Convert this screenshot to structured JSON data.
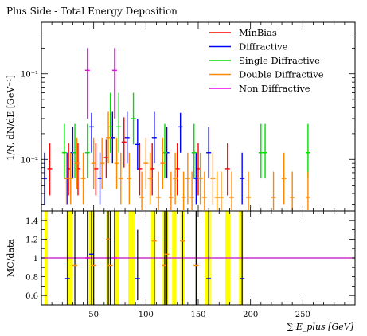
{
  "chart_data": {
    "type": "scatter",
    "title": "Plus Side - Total Energy Deposition",
    "ylabel": "1/N, dN/dE [GeV⁻¹]",
    "ratio_ylabel": "MC/data",
    "xlabel": "∑ E_plus [GeV]",
    "xlim": [
      0,
      300
    ],
    "ylim_log": [
      0.0025,
      0.4
    ],
    "ratio_ylim": [
      0.5,
      1.5
    ],
    "x_ticks": [
      50,
      100,
      150,
      200,
      250
    ],
    "y_tick_labels": [
      "10⁻²",
      "10⁻¹"
    ],
    "ratio_ticks": [
      "0.6",
      "0.8",
      "1",
      "1.2",
      "1.4"
    ],
    "legend_position": "top-right",
    "grid": false,
    "series": [
      {
        "name": "MinBias",
        "color": "#ff0000",
        "points": [
          {
            "x": 8,
            "y": 0.0078,
            "lo": 0.0038,
            "hi": 0.0155
          },
          {
            "x": 26,
            "y": 0.0078,
            "lo": 0.0038,
            "hi": 0.0155
          },
          {
            "x": 35,
            "y": 0.0078,
            "lo": 0.0038,
            "hi": 0.0155
          },
          {
            "x": 52,
            "y": 0.0078,
            "lo": 0.0038,
            "hi": 0.0155
          },
          {
            "x": 62,
            "y": 0.0105,
            "lo": 0.006,
            "hi": 0.017
          },
          {
            "x": 79,
            "y": 0.016,
            "lo": 0.008,
            "hi": 0.031
          },
          {
            "x": 94,
            "y": 0.0078,
            "lo": 0.0038,
            "hi": 0.0155
          },
          {
            "x": 106,
            "y": 0.0078,
            "lo": 0.0038,
            "hi": 0.0155
          },
          {
            "x": 130,
            "y": 0.0078,
            "lo": 0.0038,
            "hi": 0.0155
          },
          {
            "x": 150,
            "y": 0.0078,
            "lo": 0.0038,
            "hi": 0.0155
          },
          {
            "x": 178,
            "y": 0.0078,
            "lo": 0.0038,
            "hi": 0.0155
          }
        ]
      },
      {
        "name": "Diffractive",
        "color": "#0000ff",
        "points": [
          {
            "x": 3,
            "y": 0.006,
            "lo": 0.003,
            "hi": 0.012
          },
          {
            "x": 25,
            "y": 0.006,
            "lo": 0.003,
            "hi": 0.012
          },
          {
            "x": 30,
            "y": 0.012,
            "lo": 0.006,
            "hi": 0.024
          },
          {
            "x": 48,
            "y": 0.024,
            "lo": 0.012,
            "hi": 0.035
          },
          {
            "x": 56,
            "y": 0.006,
            "lo": 0.003,
            "hi": 0.012
          },
          {
            "x": 68,
            "y": 0.018,
            "lo": 0.009,
            "hi": 0.036
          },
          {
            "x": 82,
            "y": 0.018,
            "lo": 0.009,
            "hi": 0.036
          },
          {
            "x": 92,
            "y": 0.015,
            "lo": 0.0075,
            "hi": 0.03
          },
          {
            "x": 108,
            "y": 0.018,
            "lo": 0.009,
            "hi": 0.036
          },
          {
            "x": 120,
            "y": 0.012,
            "lo": 0.006,
            "hi": 0.024
          },
          {
            "x": 133,
            "y": 0.024,
            "lo": 0.012,
            "hi": 0.035
          },
          {
            "x": 148,
            "y": 0.006,
            "lo": 0.003,
            "hi": 0.012
          },
          {
            "x": 160,
            "y": 0.012,
            "lo": 0.006,
            "hi": 0.024
          },
          {
            "x": 192,
            "y": 0.006,
            "lo": 0.003,
            "hi": 0.012
          }
        ]
      },
      {
        "name": "Single Diffractive",
        "color": "#00dd00",
        "points": [
          {
            "x": 22,
            "y": 0.012,
            "lo": 0.006,
            "hi": 0.026
          },
          {
            "x": 32,
            "y": 0.012,
            "lo": 0.006,
            "hi": 0.026
          },
          {
            "x": 44,
            "y": 0.012,
            "lo": 0.006,
            "hi": 0.026
          },
          {
            "x": 66,
            "y": 0.024,
            "lo": 0.012,
            "hi": 0.06
          },
          {
            "x": 74,
            "y": 0.024,
            "lo": 0.012,
            "hi": 0.06
          },
          {
            "x": 88,
            "y": 0.03,
            "lo": 0.015,
            "hi": 0.06
          },
          {
            "x": 118,
            "y": 0.012,
            "lo": 0.006,
            "hi": 0.026
          },
          {
            "x": 146,
            "y": 0.012,
            "lo": 0.006,
            "hi": 0.026
          },
          {
            "x": 210,
            "y": 0.012,
            "lo": 0.006,
            "hi": 0.026
          },
          {
            "x": 214,
            "y": 0.012,
            "lo": 0.006,
            "hi": 0.026
          },
          {
            "x": 255,
            "y": 0.012,
            "lo": 0.006,
            "hi": 0.026
          }
        ]
      },
      {
        "name": "Double Diffractive",
        "color": "#ff8800",
        "points": [
          {
            "x": 24,
            "y": 0.006,
            "lo": 0.003,
            "hi": 0.012
          },
          {
            "x": 28,
            "y": 0.006,
            "lo": 0.003,
            "hi": 0.012
          },
          {
            "x": 34,
            "y": 0.009,
            "lo": 0.0045,
            "hi": 0.018
          },
          {
            "x": 40,
            "y": 0.006,
            "lo": 0.003,
            "hi": 0.012
          },
          {
            "x": 50,
            "y": 0.009,
            "lo": 0.0045,
            "hi": 0.018
          },
          {
            "x": 58,
            "y": 0.009,
            "lo": 0.0045,
            "hi": 0.018
          },
          {
            "x": 64,
            "y": 0.018,
            "lo": 0.009,
            "hi": 0.036
          },
          {
            "x": 72,
            "y": 0.009,
            "lo": 0.0045,
            "hi": 0.018
          },
          {
            "x": 76,
            "y": 0.006,
            "lo": 0.003,
            "hi": 0.012
          },
          {
            "x": 84,
            "y": 0.006,
            "lo": 0.003,
            "hi": 0.012
          },
          {
            "x": 96,
            "y": 0.0036,
            "lo": 0.0018,
            "hi": 0.0072
          },
          {
            "x": 100,
            "y": 0.009,
            "lo": 0.0045,
            "hi": 0.018
          },
          {
            "x": 104,
            "y": 0.006,
            "lo": 0.003,
            "hi": 0.012
          },
          {
            "x": 112,
            "y": 0.0036,
            "lo": 0.0018,
            "hi": 0.0072
          },
          {
            "x": 116,
            "y": 0.009,
            "lo": 0.0045,
            "hi": 0.018
          },
          {
            "x": 124,
            "y": 0.0036,
            "lo": 0.0018,
            "hi": 0.0072
          },
          {
            "x": 128,
            "y": 0.006,
            "lo": 0.003,
            "hi": 0.012
          },
          {
            "x": 136,
            "y": 0.0036,
            "lo": 0.0018,
            "hi": 0.0072
          },
          {
            "x": 140,
            "y": 0.006,
            "lo": 0.003,
            "hi": 0.012
          },
          {
            "x": 144,
            "y": 0.0036,
            "lo": 0.0018,
            "hi": 0.0072
          },
          {
            "x": 152,
            "y": 0.006,
            "lo": 0.003,
            "hi": 0.012
          },
          {
            "x": 156,
            "y": 0.0036,
            "lo": 0.0018,
            "hi": 0.0072
          },
          {
            "x": 164,
            "y": 0.006,
            "lo": 0.003,
            "hi": 0.012
          },
          {
            "x": 168,
            "y": 0.0036,
            "lo": 0.0018,
            "hi": 0.0072
          },
          {
            "x": 172,
            "y": 0.0036,
            "lo": 0.0018,
            "hi": 0.0072
          },
          {
            "x": 182,
            "y": 0.0036,
            "lo": 0.0018,
            "hi": 0.0072
          },
          {
            "x": 198,
            "y": 0.0036,
            "lo": 0.0018,
            "hi": 0.0072
          },
          {
            "x": 222,
            "y": 0.0036,
            "lo": 0.0018,
            "hi": 0.0072
          },
          {
            "x": 232,
            "y": 0.006,
            "lo": 0.003,
            "hi": 0.012
          },
          {
            "x": 240,
            "y": 0.0036,
            "lo": 0.0018,
            "hi": 0.0072
          },
          {
            "x": 255,
            "y": 0.0036,
            "lo": 0.0018,
            "hi": 0.0072
          }
        ]
      },
      {
        "name": "Non Diffractive",
        "color": "#ee00ee",
        "points": [
          {
            "x": 44,
            "y": 0.11,
            "lo": 0.03,
            "hi": 0.2
          },
          {
            "x": 70,
            "y": 0.11,
            "lo": 0.03,
            "hi": 0.2
          }
        ]
      }
    ],
    "ratio": {
      "reference_line": 1,
      "reference_color": "#cc33cc",
      "band_color": "#ffff00",
      "bands": [
        [
          3,
          6
        ],
        [
          24,
          30
        ],
        [
          45,
          50
        ],
        [
          62,
          66
        ],
        [
          70,
          74
        ],
        [
          83,
          89
        ],
        [
          105,
          109
        ],
        [
          116,
          121
        ],
        [
          125,
          129
        ],
        [
          133,
          137
        ],
        [
          147,
          149
        ],
        [
          156,
          162
        ],
        [
          176,
          181
        ],
        [
          189,
          193
        ]
      ],
      "points": [
        {
          "x": 25,
          "y": 0.78,
          "lo": 0.5,
          "hi": 1.5,
          "color": "#0000ff"
        },
        {
          "x": 32,
          "y": 0.92,
          "lo": 0.5,
          "hi": 1.5,
          "color": "#ff8800"
        },
        {
          "x": 44,
          "y": 1.0,
          "lo": 0.5,
          "hi": 1.5,
          "color": "#ee00ee"
        },
        {
          "x": 48,
          "y": 1.04,
          "lo": 0.5,
          "hi": 1.5,
          "color": "#0000ff"
        },
        {
          "x": 50,
          "y": 0.92,
          "lo": 0.5,
          "hi": 1.5,
          "color": "#ff8800"
        },
        {
          "x": 64,
          "y": 1.2,
          "lo": 0.5,
          "hi": 1.5,
          "color": "#ff8800"
        },
        {
          "x": 66,
          "y": 0.92,
          "lo": 0.5,
          "hi": 1.5,
          "color": "#ff8800"
        },
        {
          "x": 70,
          "y": 1.0,
          "lo": 0.5,
          "hi": 1.5,
          "color": "#ee00ee"
        },
        {
          "x": 92,
          "y": 0.78,
          "lo": 0.55,
          "hi": 1.3,
          "color": "#0000ff"
        },
        {
          "x": 108,
          "y": 1.18,
          "lo": 0.5,
          "hi": 1.5,
          "color": "#ff8800"
        },
        {
          "x": 118,
          "y": 0.92,
          "lo": 0.5,
          "hi": 1.5,
          "color": "#ff8800"
        },
        {
          "x": 120,
          "y": 1.04,
          "lo": 0.5,
          "hi": 1.5,
          "color": "#ff8800"
        },
        {
          "x": 135,
          "y": 1.18,
          "lo": 0.5,
          "hi": 1.5,
          "color": "#ff8800"
        },
        {
          "x": 148,
          "y": 0.92,
          "lo": 0.5,
          "hi": 1.5,
          "color": "#ff8800"
        },
        {
          "x": 160,
          "y": 0.78,
          "lo": 0.5,
          "hi": 1.5,
          "color": "#0000ff"
        },
        {
          "x": 192,
          "y": 0.78,
          "lo": 0.5,
          "hi": 1.5,
          "color": "#0000ff"
        }
      ]
    }
  }
}
